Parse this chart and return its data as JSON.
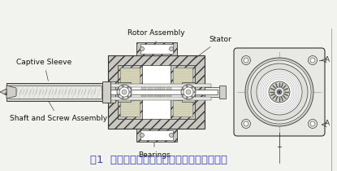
{
  "bg_color": "#f2f2ee",
  "caption": "图1  一个典型的固定轴式直线步进电机示意图",
  "caption_color": "#3344bb",
  "caption_fontsize": 9.5,
  "labels": {
    "rotor_assembly": "Rotor Assembly",
    "stator": "Stator",
    "captive_sleeve": "Captive Sleeve",
    "shaft_screw": "Shaft and Screw Assembly",
    "bearings": "Bearings"
  },
  "label_fontsize": 6.5,
  "section_label": "A",
  "lc": "#333333",
  "hatch_fc": "#c8c8c0",
  "white": "#ffffff",
  "light_gray": "#e8e8e4",
  "mid_gray": "#d0d0c8"
}
